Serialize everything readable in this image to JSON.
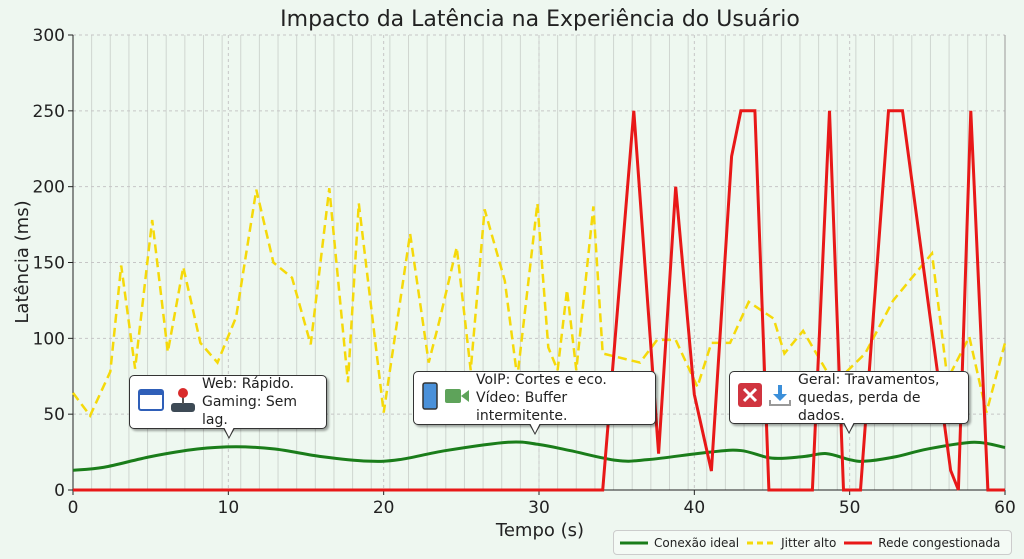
{
  "chart_data": {
    "type": "line",
    "title": "Impacto da Latência na Experiência do Usuário",
    "xlabel": "Tempo (s)",
    "ylabel": "Latência (ms)",
    "xlim": [
      0,
      60
    ],
    "ylim": [
      0,
      300
    ],
    "xticks": [
      0,
      10,
      20,
      30,
      40,
      50,
      60
    ],
    "yticks": [
      0,
      50,
      100,
      150,
      200,
      250,
      300
    ],
    "grid": true,
    "legend_position": "bottom-right, below plot",
    "series": [
      {
        "name": "Conexão ideal",
        "color": "#1a7d1a",
        "style": "solid",
        "x": [
          0,
          2,
          5,
          8,
          10.5,
          13,
          16,
          19,
          21,
          24,
          28,
          30,
          32,
          35,
          37,
          41,
          43,
          45,
          47,
          48.5,
          50,
          51,
          53,
          55,
          58,
          60
        ],
        "y": [
          13,
          15,
          22,
          27,
          28.5,
          27,
          22,
          19,
          20,
          26,
          31.5,
          30,
          26,
          19.5,
          20,
          25,
          26,
          21,
          22,
          24,
          20,
          19,
          22,
          27,
          31.5,
          28
        ]
      },
      {
        "name": "Jitter alto",
        "color": "#f5d90a",
        "style": "dashed",
        "x": [
          0,
          1.1,
          2.4,
          3.1,
          4,
          5.1,
          6.1,
          7.1,
          8.2,
          9.3,
          10.5,
          11.8,
          12.9,
          14.1,
          15.3,
          16.5,
          17.7,
          18.4,
          20,
          21.7,
          22.9,
          23.6,
          24.7,
          25.6,
          26.5,
          27.8,
          28.6,
          29.9,
          30.6,
          31.2,
          31.8,
          32.4,
          33.5,
          34.1,
          36.5,
          37.6,
          38.8,
          40.2,
          41.1,
          42.3,
          43.5,
          45.1,
          45.8,
          47,
          49,
          51,
          52.8,
          55.3,
          56.3,
          57.7,
          58.8,
          60
        ],
        "y": [
          64,
          49,
          78,
          148,
          80,
          178,
          91,
          147,
          97,
          84,
          114,
          198,
          150,
          140,
          96,
          199,
          71,
          189,
          51,
          169,
          84,
          112,
          160,
          79,
          185,
          138,
          74,
          189,
          94,
          79,
          132,
          79,
          187,
          90,
          84,
          99,
          99,
          68,
          97,
          97,
          124,
          113,
          90,
          105,
          70,
          90,
          125,
          156,
          73,
          101,
          51,
          97
        ]
      },
      {
        "name": "Rede congestionada",
        "color": "#e81818",
        "style": "solid",
        "x": [
          0,
          34.1,
          36.1,
          37.7,
          38.8,
          40,
          41.1,
          42.4,
          43,
          43.9,
          44.8,
          47.6,
          48.7,
          49.6,
          50.7,
          52.5,
          53.4,
          56.5,
          57,
          57.8,
          58.9,
          60
        ],
        "y": [
          0,
          0,
          250,
          24,
          200,
          63,
          12.5,
          220,
          250,
          250,
          0,
          0,
          250,
          0,
          0,
          250,
          250,
          13,
          0,
          250,
          0,
          0
        ]
      }
    ]
  },
  "annotations": [
    {
      "icons": [
        "browser-window-icon",
        "joystick-icon"
      ],
      "lines": [
        "Web: Rápido.",
        "Gaming: Sem lag."
      ],
      "x": 10
    },
    {
      "icons": [
        "smartphone-icon",
        "video-camera-icon"
      ],
      "lines": [
        "VoIP: Cortes e eco.",
        "Vídeo: Buffer intermitente."
      ],
      "x": 30
    },
    {
      "icons": [
        "error-x-icon",
        "download-icon"
      ],
      "lines": [
        "Geral: Travamentos,",
        "quedas, perda de dados."
      ],
      "x": 50
    }
  ]
}
